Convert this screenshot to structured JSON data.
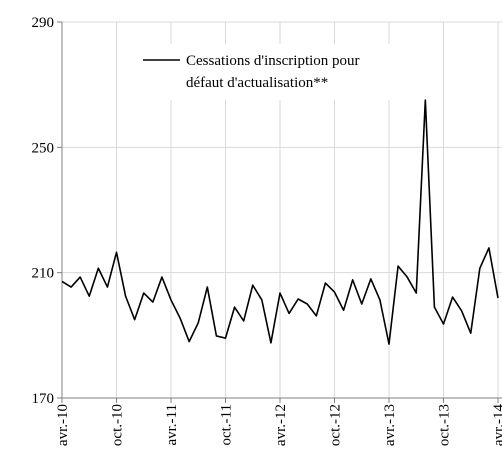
{
  "chart_data": {
    "type": "line",
    "categories": [
      "avr.-10",
      null,
      null,
      null,
      null,
      null,
      "oct.-10",
      null,
      null,
      null,
      null,
      null,
      "avr.-11",
      null,
      null,
      null,
      null,
      null,
      "oct.-11",
      null,
      null,
      null,
      null,
      null,
      "avr.-12",
      null,
      null,
      null,
      null,
      null,
      "oct.-12",
      null,
      null,
      null,
      null,
      null,
      "avr.-13",
      null,
      null,
      null,
      null,
      null,
      "oct.-13",
      null,
      null,
      null,
      null,
      null,
      "avr.-14"
    ],
    "series": [
      {
        "name": "Cessations d'inscription pour défaut d'actualisation**",
        "color": "#000000",
        "values": [
          207.2,
          205.4,
          208.6,
          202.5,
          211.4,
          205.4,
          216.5,
          202.5,
          195.0,
          203.5,
          200.6,
          208.6,
          201.3,
          195.5,
          188.0,
          194.0,
          205.4,
          189.8,
          189.1,
          199.0,
          194.6,
          206.0,
          201.3,
          187.6,
          203.5,
          197.0,
          201.6,
          200.0,
          196.2,
          206.7,
          203.8,
          198.0,
          207.7,
          200.0,
          208.0,
          201.3,
          187.2,
          212.1,
          208.6,
          203.5,
          265.1,
          199.0,
          193.6,
          202.2,
          197.8,
          190.7,
          211.4,
          217.9,
          201.9
        ]
      }
    ],
    "ylim": [
      170,
      290
    ],
    "yticks": [
      170,
      210,
      250,
      290
    ],
    "grid": true
  }
}
